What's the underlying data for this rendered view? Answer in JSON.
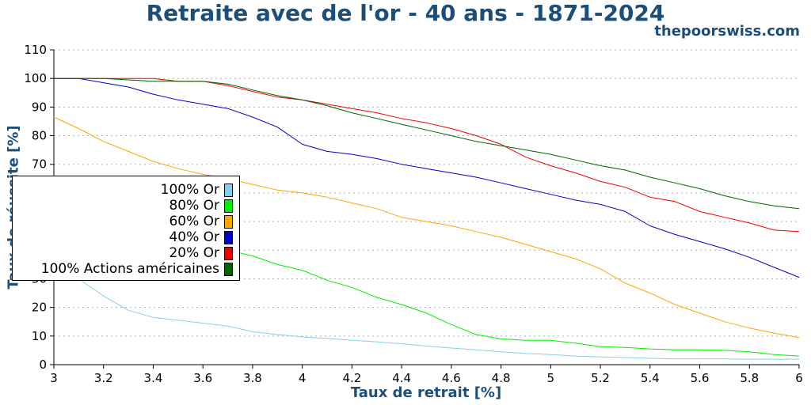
{
  "chart_data": {
    "type": "line",
    "title": "Retraite avec de l'or - 40 ans - 1871-2024",
    "source": "thepoorswiss.com",
    "xlabel": "Taux de retrait [%]",
    "ylabel": "Taux de réussite [%]",
    "xlim": [
      3,
      6
    ],
    "ylim": [
      0,
      110
    ],
    "x_ticks": [
      "3",
      "3.2",
      "3.4",
      "3.6",
      "3.8",
      "4",
      "4.2",
      "4.4",
      "4.6",
      "4.8",
      "5",
      "5.2",
      "5.4",
      "5.6",
      "5.8",
      "6"
    ],
    "y_ticks": [
      "0",
      "10",
      "20",
      "30",
      "40",
      "50",
      "60",
      "70",
      "80",
      "90",
      "100",
      "110"
    ],
    "grid": "horizontal dotted",
    "legend_position": "left",
    "x": [
      3.0,
      3.1,
      3.2,
      3.3,
      3.4,
      3.5,
      3.6,
      3.7,
      3.8,
      3.9,
      4.0,
      4.1,
      4.2,
      4.3,
      4.4,
      4.5,
      4.6,
      4.7,
      4.8,
      4.9,
      5.0,
      5.1,
      5.2,
      5.3,
      5.4,
      5.5,
      5.6,
      5.7,
      5.8,
      5.9,
      6.0
    ],
    "series": [
      {
        "name": "100% Or",
        "color": "#87ceeb",
        "values": [
          36.5,
          30,
          24,
          19,
          16.5,
          15.5,
          14.5,
          13.5,
          11.5,
          10.5,
          9.7,
          9.2,
          8.5,
          8,
          7.3,
          6.5,
          5.8,
          5.2,
          4.5,
          3.9,
          3.5,
          3,
          2.7,
          2.5,
          2.2,
          2,
          2,
          2,
          1.9,
          1.9,
          1.9
        ]
      },
      {
        "name": "80% Or",
        "color": "#00ee00",
        "values": [
          50,
          47,
          44,
          43,
          42,
          42,
          41.5,
          40,
          38,
          35,
          33,
          29.5,
          27,
          23.5,
          21,
          18,
          14,
          10.5,
          9,
          8.5,
          8.5,
          7.5,
          6.3,
          6,
          5.5,
          5.2,
          5.2,
          5,
          4.5,
          3.5,
          3
        ]
      },
      {
        "name": "60% Or",
        "color": "#ffa500",
        "values": [
          86.5,
          82.5,
          78,
          74.5,
          71,
          68.5,
          66.5,
          65,
          63,
          61,
          60,
          58.5,
          56.5,
          54.5,
          51.5,
          50,
          48.5,
          46.5,
          44.5,
          42,
          39.5,
          37,
          33.5,
          28.5,
          25,
          21,
          18,
          15,
          12.8,
          11,
          9.5
        ]
      },
      {
        "name": "40% Or",
        "color": "#0000cc",
        "values": [
          100,
          100,
          98.5,
          97,
          94.5,
          92.5,
          91,
          89.5,
          86.5,
          83,
          77,
          74.5,
          73.5,
          72,
          70,
          68.5,
          67,
          65.5,
          63.5,
          61.5,
          59.5,
          57.5,
          56,
          53.5,
          48.5,
          45.5,
          43,
          40.5,
          37.5,
          34,
          30.5
        ]
      },
      {
        "name": "20% Or",
        "color": "#ee0000",
        "values": [
          100,
          100,
          100,
          100,
          100,
          99,
          99,
          97.5,
          95.5,
          93.5,
          92.5,
          91,
          89.5,
          88,
          86,
          84.5,
          82.5,
          80,
          77,
          72.5,
          69.5,
          67,
          64,
          62,
          58.5,
          57,
          53.5,
          51.5,
          49.5,
          47,
          46.5
        ]
      },
      {
        "name": "100% Actions américaines",
        "color": "#006400",
        "values": [
          100,
          100,
          100,
          99.5,
          99,
          99,
          99,
          98,
          96,
          94,
          92.5,
          90.5,
          88,
          86,
          84,
          82,
          80,
          78,
          76.5,
          75,
          73.5,
          71.5,
          69.5,
          68,
          65.5,
          63.5,
          61.5,
          59,
          57,
          55.5,
          54.5
        ]
      }
    ]
  }
}
